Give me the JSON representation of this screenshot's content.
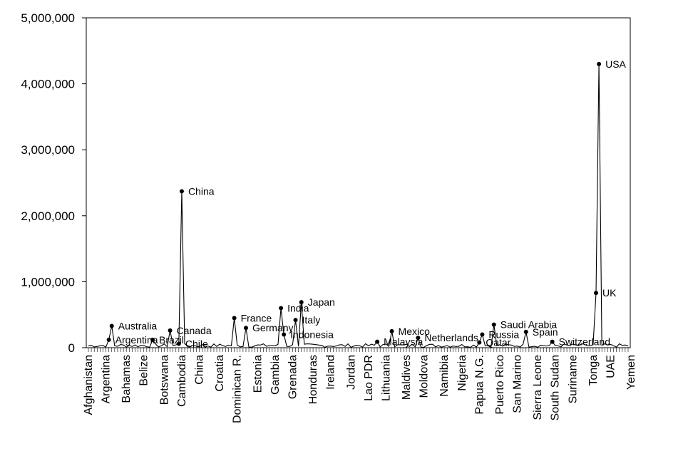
{
  "chart_data": {
    "type": "line",
    "title": "",
    "xlabel": "",
    "ylabel": "",
    "ylim": [
      0,
      5000000
    ],
    "yticks": [
      "0",
      "1,000,000",
      "2,000,000",
      "3,000,000",
      "4,000,000",
      "5,000,000"
    ],
    "categories_visible": [
      "Afghanistan",
      "Argentina",
      "Bahamas",
      "Belize",
      "Botswana",
      "Cambodia",
      "China",
      "Croatia",
      "Dominican R.",
      "Estonia",
      "Gambia",
      "Grenada",
      "Honduras",
      "Ireland",
      "Jordan",
      "Lao PDR",
      "Lithuania",
      "Maldives",
      "Moldova",
      "Namibia",
      "Nigeria",
      "Papua N.G.",
      "Puerto Rico",
      "San Marino",
      "Sierra Leone",
      "South Sudan",
      "Suriname",
      "Tonga",
      "UAE",
      "Yemen"
    ],
    "n_points": 186,
    "series": [
      {
        "color": "#000000",
        "labeled_points": [
          {
            "label": "Australia",
            "y": 330000
          },
          {
            "label": "Argentina",
            "y": 120000
          },
          {
            "label": "Brazil",
            "y": 120000
          },
          {
            "label": "Canada",
            "y": 260000
          },
          {
            "label": "Chile",
            "y": 60000
          },
          {
            "label": "China",
            "y": 2370000
          },
          {
            "label": "France",
            "y": 450000
          },
          {
            "label": "Germany",
            "y": 300000
          },
          {
            "label": "India",
            "y": 600000
          },
          {
            "label": "Indonesia",
            "y": 200000
          },
          {
            "label": "Italy",
            "y": 420000
          },
          {
            "label": "Japan",
            "y": 690000
          },
          {
            "label": "Mexico",
            "y": 250000
          },
          {
            "label": "Malaysia",
            "y": 90000
          },
          {
            "label": "Netherlands",
            "y": 150000
          },
          {
            "label": "Russia",
            "y": 200000
          },
          {
            "label": "Qatar",
            "y": 80000
          },
          {
            "label": "Saudi Arabia",
            "y": 350000
          },
          {
            "label": "Spain",
            "y": 240000
          },
          {
            "label": "Switzerland",
            "y": 90000
          },
          {
            "label": "UK",
            "y": 830000
          },
          {
            "label": "USA",
            "y": 4300000
          }
        ]
      }
    ],
    "grid": false,
    "legend": "none"
  }
}
